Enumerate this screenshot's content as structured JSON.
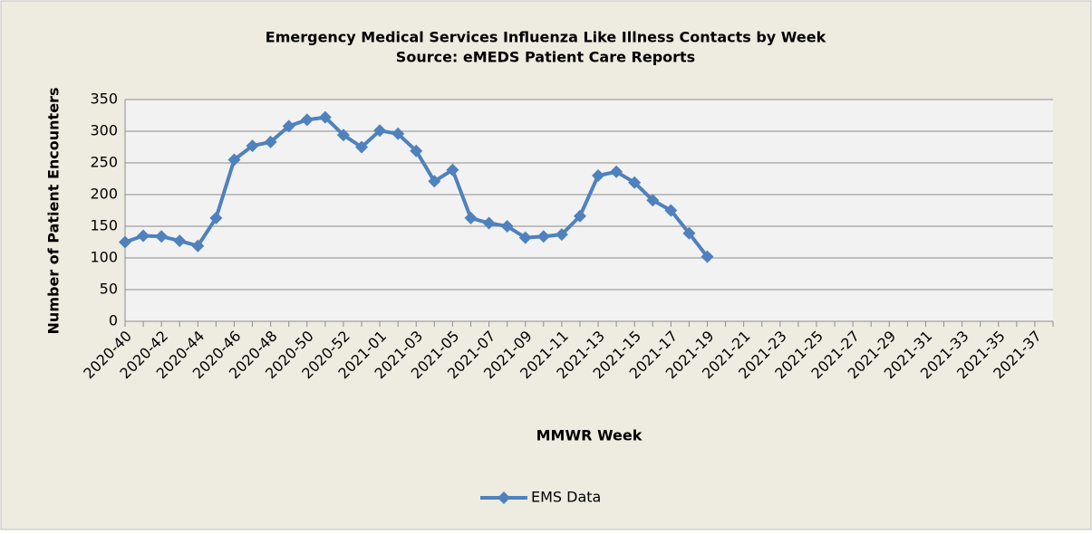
{
  "chart_data": {
    "type": "line",
    "title": "Emergency Medical Services Influenza Like Illness Contacts by Week",
    "subtitle": "Source: eMEDS Patient Care Reports",
    "x_label": "MMWR Week",
    "y_label": "Number of Patient Encounters",
    "categories": [
      "2020-40",
      null,
      "2020-42",
      null,
      "2020-44",
      null,
      "2020-46",
      null,
      "2020-48",
      null,
      "2020-50",
      null,
      "2020-52",
      null,
      "2021-01",
      null,
      "2021-03",
      null,
      "2021-05",
      null,
      "2021-07",
      null,
      "2021-09",
      null,
      "2021-11",
      null,
      "2021-13",
      null,
      "2021-15",
      null,
      "2021-17",
      null,
      "2021-19",
      null,
      "2021-21",
      null,
      "2021-23",
      null,
      "2021-25",
      null,
      "2021-27",
      null,
      "2021-29",
      null,
      "2021-31",
      null,
      "2021-33",
      null,
      "2021-35",
      null,
      "2021-37",
      null
    ],
    "series": [
      {
        "name": "EMS Data",
        "color": "#4f81bd",
        "values": [
          125,
          135,
          134,
          127,
          119,
          163,
          255,
          277,
          283,
          308,
          318,
          322,
          294,
          275,
          301,
          296,
          269,
          221,
          239,
          163,
          155,
          150,
          132,
          134,
          137,
          166,
          230,
          236,
          219,
          191,
          175,
          139,
          102,
          null,
          null,
          null,
          null,
          null,
          null,
          null,
          null,
          null,
          null,
          null,
          null,
          null,
          null,
          null,
          null,
          null,
          null,
          null
        ]
      }
    ],
    "ylim": [
      0,
      350
    ],
    "yticks": [
      0,
      50,
      100,
      150,
      200,
      250,
      300,
      350
    ],
    "grid": true,
    "legend": "bottom"
  }
}
